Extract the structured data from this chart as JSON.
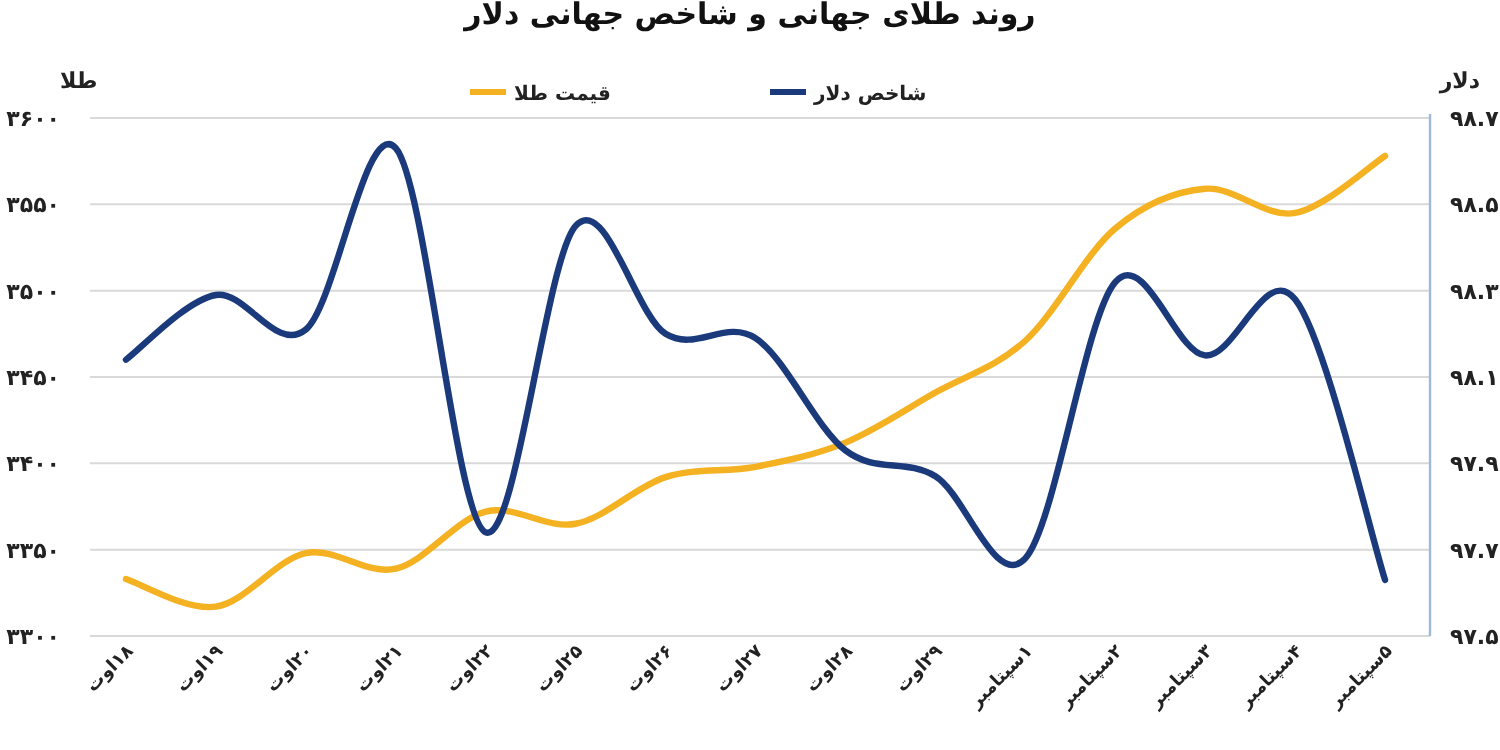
{
  "chart_data": {
    "type": "line",
    "title": "روند طلای جهانی و شاخص جهانی دلار",
    "ylabel": "طلا",
    "y2label": "دلار",
    "categories": [
      "۱۸اوت",
      "۱۹اوت",
      "۲۰اوت",
      "۲۱اوت",
      "۲۲اوت",
      "۲۵اوت",
      "۲۶اوت",
      "۲۷اوت",
      "۲۸اوت",
      "۲۹اوت",
      "۱سپتامبر",
      "۲سپتامبر",
      "۳سپتامبر",
      "۴سپتامبر",
      "۵سپتامبر"
    ],
    "series": [
      {
        "name": "قیمت طلا",
        "color": "#f4b223",
        "axis": "y",
        "values": [
          3333,
          3317,
          3348,
          3339,
          3372,
          3365,
          3392,
          3398,
          3412,
          3441,
          3471,
          3536,
          3559,
          3545,
          3578
        ]
      },
      {
        "name": "شاخص دلار",
        "color": "#1b3a7c",
        "axis": "y2",
        "values": [
          98.14,
          98.29,
          98.21,
          98.63,
          97.74,
          98.45,
          98.2,
          98.19,
          97.93,
          97.87,
          97.68,
          98.32,
          98.15,
          98.28,
          97.63
        ]
      }
    ],
    "ylim": [
      3300,
      3600
    ],
    "yticks": [
      {
        "value": 3300,
        "label": "۳۳۰۰"
      },
      {
        "value": 3350,
        "label": "۳۳۵۰"
      },
      {
        "value": 3400,
        "label": "۳۴۰۰"
      },
      {
        "value": 3450,
        "label": "۳۴۵۰"
      },
      {
        "value": 3500,
        "label": "۳۵۰۰"
      },
      {
        "value": 3550,
        "label": "۳۵۵۰"
      },
      {
        "value": 3600,
        "label": "۳۶۰۰"
      }
    ],
    "y2lim": [
      97.5,
      98.7
    ],
    "y2ticks": [
      {
        "value": 97.5,
        "label": "۹۷.۵"
      },
      {
        "value": 97.7,
        "label": "۹۷.۷"
      },
      {
        "value": 97.9,
        "label": "۹۷.۹"
      },
      {
        "value": 98.1,
        "label": "۹۸.۱"
      },
      {
        "value": 98.3,
        "label": "۹۸.۳"
      },
      {
        "value": 98.5,
        "label": "۹۸.۵"
      },
      {
        "value": 98.7,
        "label": "۹۸.۷"
      }
    ],
    "grid": "y",
    "legend": "top"
  }
}
